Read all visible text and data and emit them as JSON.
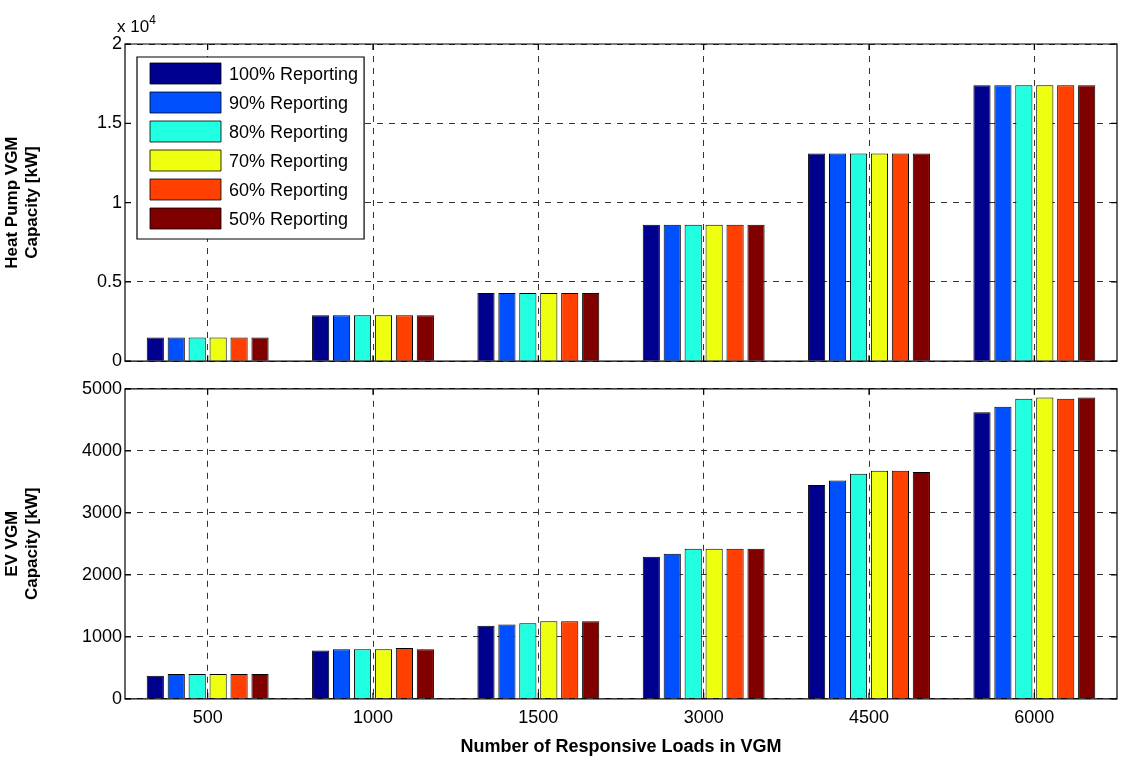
{
  "chart_data": [
    {
      "type": "bar",
      "ylabel": "Heat Pump VGM\nCapacity [kW]",
      "categories": [
        "500",
        "1000",
        "1500",
        "3000",
        "4500",
        "6000"
      ],
      "series": [
        {
          "name": "100% Reporting",
          "color": "#00008f",
          "values": [
            0.15,
            0.29,
            0.43,
            0.86,
            1.31,
            1.74
          ]
        },
        {
          "name": "90% Reporting",
          "color": "#0050ff",
          "values": [
            0.15,
            0.29,
            0.43,
            0.86,
            1.31,
            1.74
          ]
        },
        {
          "name": "80% Reporting",
          "color": "#20ffdf",
          "values": [
            0.15,
            0.29,
            0.43,
            0.86,
            1.31,
            1.74
          ]
        },
        {
          "name": "70% Reporting",
          "color": "#efff10",
          "values": [
            0.15,
            0.29,
            0.43,
            0.86,
            1.31,
            1.74
          ]
        },
        {
          "name": "60% Reporting",
          "color": "#ff4000",
          "values": [
            0.15,
            0.29,
            0.43,
            0.86,
            1.31,
            1.74
          ]
        },
        {
          "name": "50% Reporting",
          "color": "#800000",
          "values": [
            0.15,
            0.29,
            0.43,
            0.86,
            1.31,
            1.74
          ]
        }
      ],
      "ylim": [
        0,
        2
      ],
      "yticks": [
        0,
        0.5,
        1,
        1.5,
        2
      ],
      "annotations": [
        "x 10$^{4}$"
      ],
      "grid": true,
      "legend": "top left",
      "tick_labels": "y"
    },
    {
      "type": "bar",
      "xlabel": "Number of Responsive Loads in VGM",
      "ylabel": "EV VGM\nCapacity [kW]",
      "categories": [
        "500",
        "1000",
        "1500",
        "3000",
        "4500",
        "6000"
      ],
      "series": [
        {
          "color": "#00008f",
          "values": [
            370,
            780,
            1180,
            2290,
            3450,
            4620
          ]
        },
        {
          "color": "#0050ff",
          "values": [
            400,
            800,
            1200,
            2340,
            3520,
            4710
          ]
        },
        {
          "color": "#20ffdf",
          "values": [
            400,
            800,
            1220,
            2420,
            3630,
            4840
          ]
        },
        {
          "color": "#efff10",
          "values": [
            400,
            800,
            1250,
            2420,
            3680,
            4860
          ]
        },
        {
          "color": "#ff4000",
          "values": [
            400,
            820,
            1250,
            2420,
            3680,
            4840
          ]
        },
        {
          "color": "#800000",
          "values": [
            400,
            800,
            1250,
            2420,
            3660,
            4860
          ]
        }
      ],
      "ylim": [
        0,
        5000
      ],
      "yticks": [
        0,
        1000,
        2000,
        3000,
        4000,
        5000
      ],
      "grid": true
    }
  ]
}
